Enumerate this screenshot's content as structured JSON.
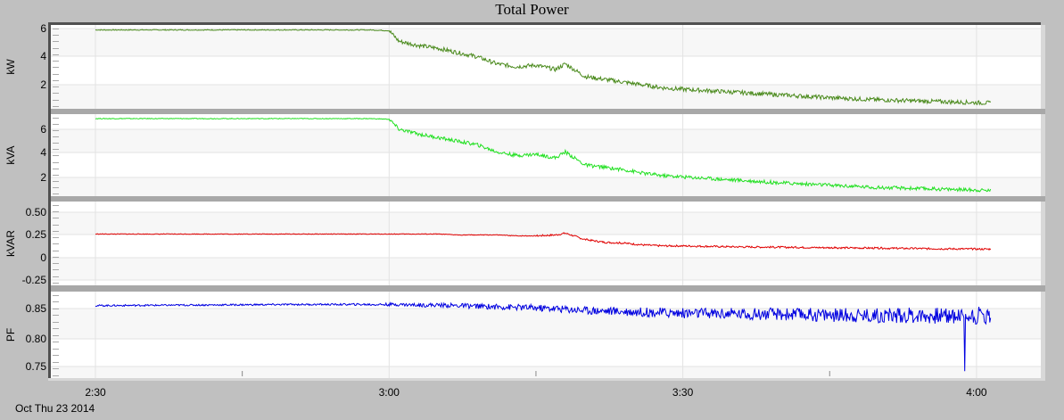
{
  "title": "Total Power",
  "date_label": "Oct Thu 23 2014",
  "colors": {
    "background": "#c0c0c0",
    "frame": "#505050",
    "separator": "#a8a8a8",
    "band_light": "#f7f7f7",
    "band_white": "#ffffff",
    "grid": "#e3e3e3",
    "kW": "#4a8a1c",
    "kVA": "#22e022",
    "kVAR": "#e00000",
    "PF": "#0000e0"
  },
  "chart_data": {
    "type": "line",
    "title": "Total Power",
    "xlabel": "Oct Thu 23 2014",
    "x_ticks": [
      "2:30",
      "3:00",
      "3:30",
      "4:00"
    ],
    "x_range": [
      "2:30",
      "4:02"
    ],
    "grid": true,
    "legend": "none",
    "x_minutes_from_230": [
      0,
      10,
      20,
      28,
      30,
      31,
      33,
      35,
      37,
      39,
      41,
      43,
      45,
      47,
      48,
      50,
      52,
      54,
      56,
      58,
      60,
      65,
      70,
      75,
      80,
      85,
      90,
      91.5
    ],
    "panels": [
      {
        "name": "kW",
        "ylabel": "kW",
        "y_ticks": [
          "6",
          "4",
          "2"
        ],
        "ylim": [
          0,
          6
        ],
        "color": "#4a8a1c",
        "values": [
          5.9,
          5.9,
          5.9,
          5.9,
          5.85,
          5.1,
          4.8,
          4.6,
          4.3,
          4.0,
          3.5,
          3.3,
          3.4,
          3.1,
          3.5,
          2.6,
          2.4,
          2.2,
          2.0,
          1.8,
          1.7,
          1.5,
          1.3,
          1.1,
          0.95,
          0.85,
          0.75,
          0.72
        ]
      },
      {
        "name": "kVA",
        "ylabel": "kVA",
        "y_ticks": [
          "6",
          "4",
          "2"
        ],
        "ylim": [
          0,
          7
        ],
        "color": "#22e022",
        "values": [
          6.9,
          6.9,
          6.9,
          6.9,
          6.85,
          6.0,
          5.6,
          5.3,
          5.0,
          4.7,
          4.1,
          3.8,
          3.9,
          3.6,
          4.1,
          3.0,
          2.8,
          2.6,
          2.3,
          2.1,
          2.0,
          1.75,
          1.5,
          1.3,
          1.1,
          1.0,
          0.9,
          0.85
        ]
      },
      {
        "name": "kVAR",
        "ylabel": "kVAR",
        "y_ticks": [
          "0.50",
          "0.25",
          "0",
          "-0.25"
        ],
        "ylim": [
          -0.3,
          0.6
        ],
        "color": "#e00000",
        "values": [
          0.26,
          0.26,
          0.26,
          0.26,
          0.26,
          0.26,
          0.26,
          0.26,
          0.25,
          0.25,
          0.25,
          0.24,
          0.24,
          0.25,
          0.27,
          0.2,
          0.17,
          0.16,
          0.14,
          0.13,
          0.13,
          0.12,
          0.115,
          0.11,
          0.105,
          0.1,
          0.095,
          0.095
        ]
      },
      {
        "name": "PF",
        "ylabel": "PF",
        "y_ticks": [
          "0.85",
          "0.80",
          "0.75"
        ],
        "ylim": [
          0.74,
          0.88
        ],
        "color": "#0000e0",
        "values": [
          0.855,
          0.856,
          0.857,
          0.857,
          0.857,
          0.857,
          0.856,
          0.856,
          0.855,
          0.854,
          0.853,
          0.852,
          0.851,
          0.85,
          0.849,
          0.847,
          0.846,
          0.845,
          0.844,
          0.843,
          0.842,
          0.841,
          0.84,
          0.839,
          0.838,
          0.838,
          0.838,
          0.838
        ],
        "annotations": [
          "outlier dip to ~0.74 near 3:59"
        ]
      }
    ]
  }
}
